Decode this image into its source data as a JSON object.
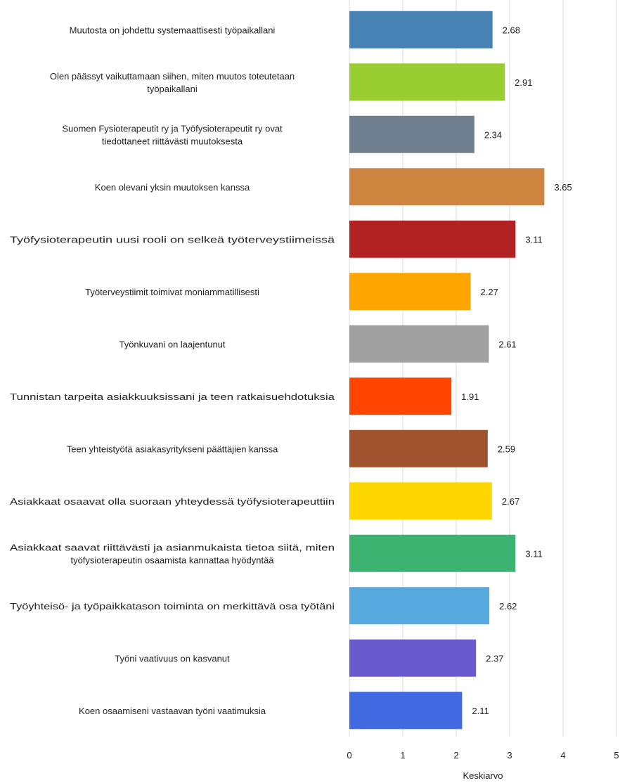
{
  "chart_data": {
    "type": "bar",
    "orientation": "horizontal",
    "xlabel": "Keskiarvo",
    "xlim": [
      0,
      5
    ],
    "xticks": [
      "0",
      "1",
      "2",
      "3",
      "4",
      "5"
    ],
    "grid": true,
    "categories": [
      {
        "label": [
          "Muutosta on johdettu systemaattisesti työpaikallani"
        ],
        "value": 2.68,
        "value_label": "2.68",
        "color": "#4682B4"
      },
      {
        "label": [
          "Olen päässyt vaikuttamaan siihen, miten muutos toteutetaan",
          "työpaikallani"
        ],
        "value": 2.91,
        "value_label": "2.91",
        "color": "#9ACD32"
      },
      {
        "label": [
          "Suomen Fysioterapeutit ry ja Työfysioterapeutit ry ovat",
          "tiedottaneet riittävästi muutoksesta"
        ],
        "value": 2.34,
        "value_label": "2.34",
        "color": "#708090"
      },
      {
        "label": [
          "Koen olevani yksin muutoksen kanssa"
        ],
        "value": 3.65,
        "value_label": "3.65",
        "color": "#CD853F"
      },
      {
        "label": [
          "Työfysioterapeutin uusi rooli on selkeä työterveystiimeissä"
        ],
        "value": 3.11,
        "value_label": "3.11",
        "color": "#B22222"
      },
      {
        "label": [
          "Työterveystiimit toimivat moniammatillisesti"
        ],
        "value": 2.27,
        "value_label": "2.27",
        "color": "#FFA500"
      },
      {
        "label": [
          "Työnkuvani on laajentunut"
        ],
        "value": 2.61,
        "value_label": "2.61",
        "color": "#A0A0A0"
      },
      {
        "label": [
          "Tunnistan tarpeita asiakkuuksissani ja teen ratkaisuehdotuksia"
        ],
        "value": 1.91,
        "value_label": "1.91",
        "color": "#FF4500"
      },
      {
        "label": [
          "Teen yhteistyötä asiakasyritykseni päättäjien kanssa"
        ],
        "value": 2.59,
        "value_label": "2.59",
        "color": "#A0522D"
      },
      {
        "label": [
          "Asiakkaat osaavat olla suoraan yhteydessä työfysioterapeuttiin"
        ],
        "value": 2.67,
        "value_label": "2.67",
        "color": "#FFD700"
      },
      {
        "label": [
          "Asiakkaat saavat riittävästi ja asianmukaista tietoa siitä, miten",
          "työfysioterapeutin osaamista kannattaa hyödyntää"
        ],
        "value": 3.11,
        "value_label": "3.11",
        "color": "#3CB371"
      },
      {
        "label": [
          "Työyhteisö- ja työpaikkatason toiminta on merkittävä osa työtäni"
        ],
        "value": 2.62,
        "value_label": "2.62",
        "color": "#56A9DC"
      },
      {
        "label": [
          "Työni vaativuus on kasvanut"
        ],
        "value": 2.37,
        "value_label": "2.37",
        "color": "#6A5ACD"
      },
      {
        "label": [
          "Koen osaamiseni vastaavan työni vaatimuksia"
        ],
        "value": 2.11,
        "value_label": "2.11",
        "color": "#4169E1"
      }
    ]
  }
}
